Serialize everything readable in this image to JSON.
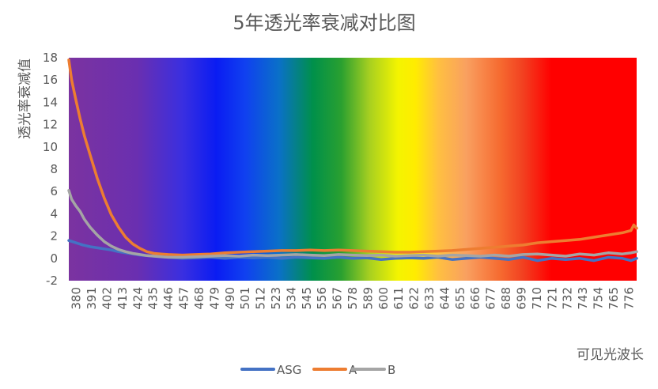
{
  "chart_data": {
    "type": "line",
    "title": "5年透光率衰减对比图",
    "xlabel": "可见光波长",
    "ylabel": "透光率衰减值",
    "ylim": [
      -2,
      18
    ],
    "yticks": [
      -2,
      0,
      2,
      4,
      6,
      8,
      10,
      12,
      14,
      16,
      18
    ],
    "xlim": [
      380,
      780
    ],
    "xtick_labels": [
      "380",
      "391",
      "402",
      "413",
      "424",
      "435",
      "446",
      "457",
      "468",
      "479",
      "490",
      "501",
      "512",
      "523",
      "534",
      "545",
      "556",
      "567",
      "578",
      "589",
      "600",
      "611",
      "622",
      "633",
      "644",
      "655",
      "666",
      "677",
      "688",
      "699",
      "710",
      "721",
      "732",
      "743",
      "754",
      "765",
      "776"
    ],
    "grid": false,
    "legend_position": "bottom",
    "background": "visible-spectrum gradient",
    "series": [
      {
        "name": "ASG",
        "color": "#4472C4",
        "x": [
          380,
          385,
          390,
          395,
          400,
          405,
          410,
          415,
          420,
          425,
          430,
          440,
          450,
          460,
          470,
          480,
          490,
          500,
          510,
          520,
          530,
          540,
          550,
          560,
          570,
          580,
          590,
          600,
          610,
          620,
          630,
          640,
          650,
          660,
          670,
          680,
          690,
          700,
          710,
          720,
          730,
          740,
          750,
          760,
          770,
          776,
          780
        ],
        "y": [
          1.6,
          1.4,
          1.2,
          1.05,
          0.95,
          0.85,
          0.75,
          0.6,
          0.5,
          0.4,
          0.3,
          0.2,
          0.1,
          0.0,
          0.05,
          0.1,
          0.0,
          0.1,
          0.05,
          0.1,
          0.0,
          0.1,
          0.05,
          0.0,
          0.1,
          0.0,
          0.05,
          -0.1,
          0.0,
          0.05,
          0.0,
          0.1,
          -0.1,
          0.0,
          0.1,
          0.0,
          -0.1,
          0.1,
          -0.2,
          0.0,
          -0.1,
          0.0,
          -0.2,
          0.1,
          0.0,
          -0.2,
          0.0
        ]
      },
      {
        "name": "A",
        "color": "#ED7D31",
        "x": [
          380,
          382,
          385,
          388,
          391,
          395,
          400,
          405,
          410,
          415,
          420,
          425,
          430,
          435,
          440,
          445,
          450,
          460,
          470,
          480,
          490,
          500,
          510,
          520,
          530,
          540,
          550,
          560,
          570,
          580,
          590,
          600,
          610,
          620,
          630,
          640,
          650,
          660,
          670,
          680,
          690,
          700,
          710,
          720,
          730,
          740,
          750,
          760,
          770,
          776,
          778,
          780
        ],
        "y": [
          17.8,
          16,
          14.2,
          12.5,
          11,
          9.3,
          7.2,
          5.4,
          3.9,
          2.8,
          1.9,
          1.3,
          0.9,
          0.6,
          0.45,
          0.4,
          0.35,
          0.3,
          0.35,
          0.4,
          0.5,
          0.55,
          0.6,
          0.65,
          0.7,
          0.7,
          0.75,
          0.7,
          0.75,
          0.7,
          0.65,
          0.6,
          0.55,
          0.55,
          0.6,
          0.65,
          0.7,
          0.8,
          0.9,
          1.0,
          1.1,
          1.2,
          1.4,
          1.5,
          1.6,
          1.7,
          1.9,
          2.1,
          2.3,
          2.5,
          3.0,
          2.7
        ]
      },
      {
        "name": "B",
        "color": "#A5A5A5",
        "x": [
          380,
          382,
          385,
          388,
          391,
          395,
          400,
          405,
          410,
          415,
          420,
          425,
          430,
          435,
          440,
          445,
          450,
          460,
          470,
          480,
          490,
          500,
          510,
          520,
          530,
          540,
          550,
          560,
          570,
          580,
          590,
          600,
          610,
          620,
          630,
          640,
          650,
          660,
          670,
          680,
          690,
          700,
          710,
          720,
          730,
          740,
          750,
          760,
          770,
          776,
          780
        ],
        "y": [
          6.1,
          5.3,
          4.7,
          4.2,
          3.5,
          2.8,
          2.1,
          1.5,
          1.1,
          0.8,
          0.6,
          0.45,
          0.35,
          0.25,
          0.2,
          0.15,
          0.1,
          0.1,
          0.15,
          0.2,
          0.25,
          0.2,
          0.3,
          0.25,
          0.3,
          0.35,
          0.3,
          0.25,
          0.35,
          0.3,
          0.25,
          0.3,
          0.2,
          0.25,
          0.3,
          0.2,
          0.3,
          0.25,
          0.2,
          0.3,
          0.2,
          0.35,
          0.4,
          0.3,
          0.2,
          0.4,
          0.3,
          0.5,
          0.4,
          0.5,
          0.6
        ]
      }
    ]
  }
}
